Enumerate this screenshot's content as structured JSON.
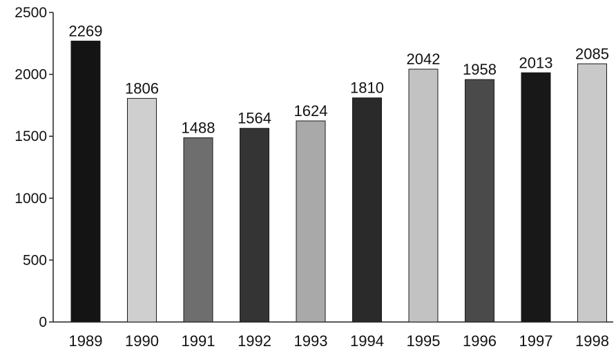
{
  "chart_data": {
    "type": "bar",
    "title": "",
    "xlabel": "",
    "ylabel": "",
    "categories": [
      "1989",
      "1990",
      "1991",
      "1992",
      "1993",
      "1994",
      "1995",
      "1996",
      "1997",
      "1998"
    ],
    "values": [
      2269,
      1806,
      1488,
      1564,
      1624,
      1810,
      2042,
      1958,
      2013,
      2085
    ],
    "data_labels": [
      "2269",
      "1806",
      "1488",
      "1564",
      "1624",
      "1810",
      "2042",
      "1958",
      "2013",
      "2085"
    ],
    "ylim": [
      0,
      2500
    ],
    "yticks": [
      0,
      500,
      1000,
      1500,
      2000,
      2500
    ],
    "ytick_labels": [
      "0",
      "500",
      "1000",
      "1500",
      "2000",
      "2500"
    ],
    "grid": false,
    "legend": "none",
    "bar_colors": [
      "#141414",
      "#cfcfcf",
      "#6e6e6e",
      "#343434",
      "#a9a9a9",
      "#2a2a2a",
      "#c2c2c2",
      "#4a4a4a",
      "#181818",
      "#c9c9c9"
    ]
  }
}
